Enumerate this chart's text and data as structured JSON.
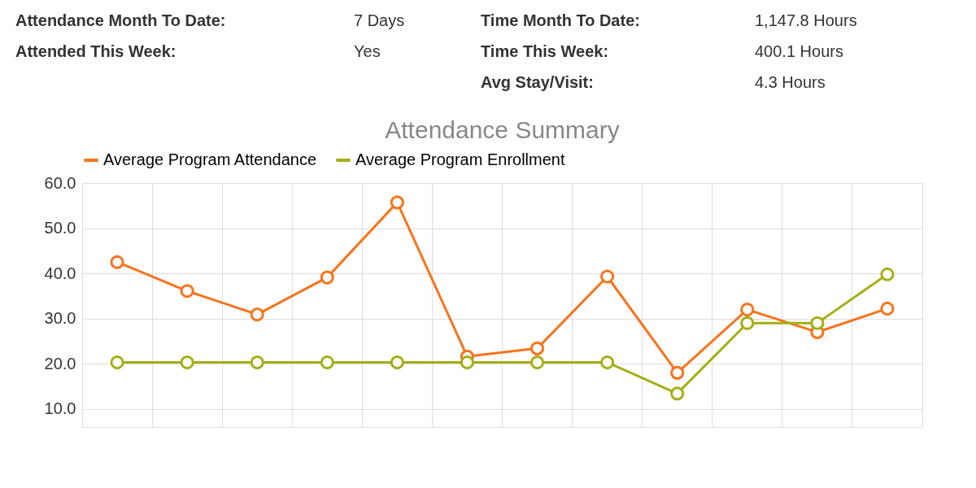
{
  "chart_data": [
    {
      "type": "other",
      "annotations": [
        "Attendance Month To Date:",
        "7 Days",
        "Attended This Week:",
        "Yes",
        "Time Month To Date:",
        "1,147.8 Hours",
        "Time This Week:",
        "400.1 Hours",
        "Avg Stay/Visit:",
        "4.3 Hours"
      ]
    },
    {
      "type": "line",
      "title": "Attendance Summary",
      "categories": [
        null,
        null,
        null,
        null,
        null,
        null,
        null,
        null,
        null,
        null,
        null,
        null
      ],
      "series": [
        {
          "name": "Average Program Attendance",
          "color": "#f7731c",
          "values": [
            42.5,
            36.1,
            30.9,
            39.1,
            55.7,
            21.6,
            23.4,
            39.3,
            18.0,
            32.0,
            27.0,
            32.2
          ]
        },
        {
          "name": "Average Program Enrollment",
          "color": "#a5ae14",
          "values": [
            20.3,
            20.3,
            20.3,
            20.3,
            20.3,
            20.3,
            20.3,
            20.3,
            13.4,
            29.0,
            29.0,
            39.8
          ]
        }
      ],
      "ylim": [
        6,
        60
      ],
      "yticks": [
        {
          "value": 10,
          "label": "10.0"
        },
        {
          "value": 20,
          "label": "20.0"
        },
        {
          "value": 30,
          "label": "30.0"
        },
        {
          "value": 40,
          "label": "40.0"
        },
        {
          "value": 50,
          "label": "50.0"
        },
        {
          "value": 60,
          "label": "60.0"
        }
      ],
      "grid": true,
      "legend": "top",
      "marker": "circle",
      "line_style": "solid",
      "tick_labels": "y"
    }
  ]
}
